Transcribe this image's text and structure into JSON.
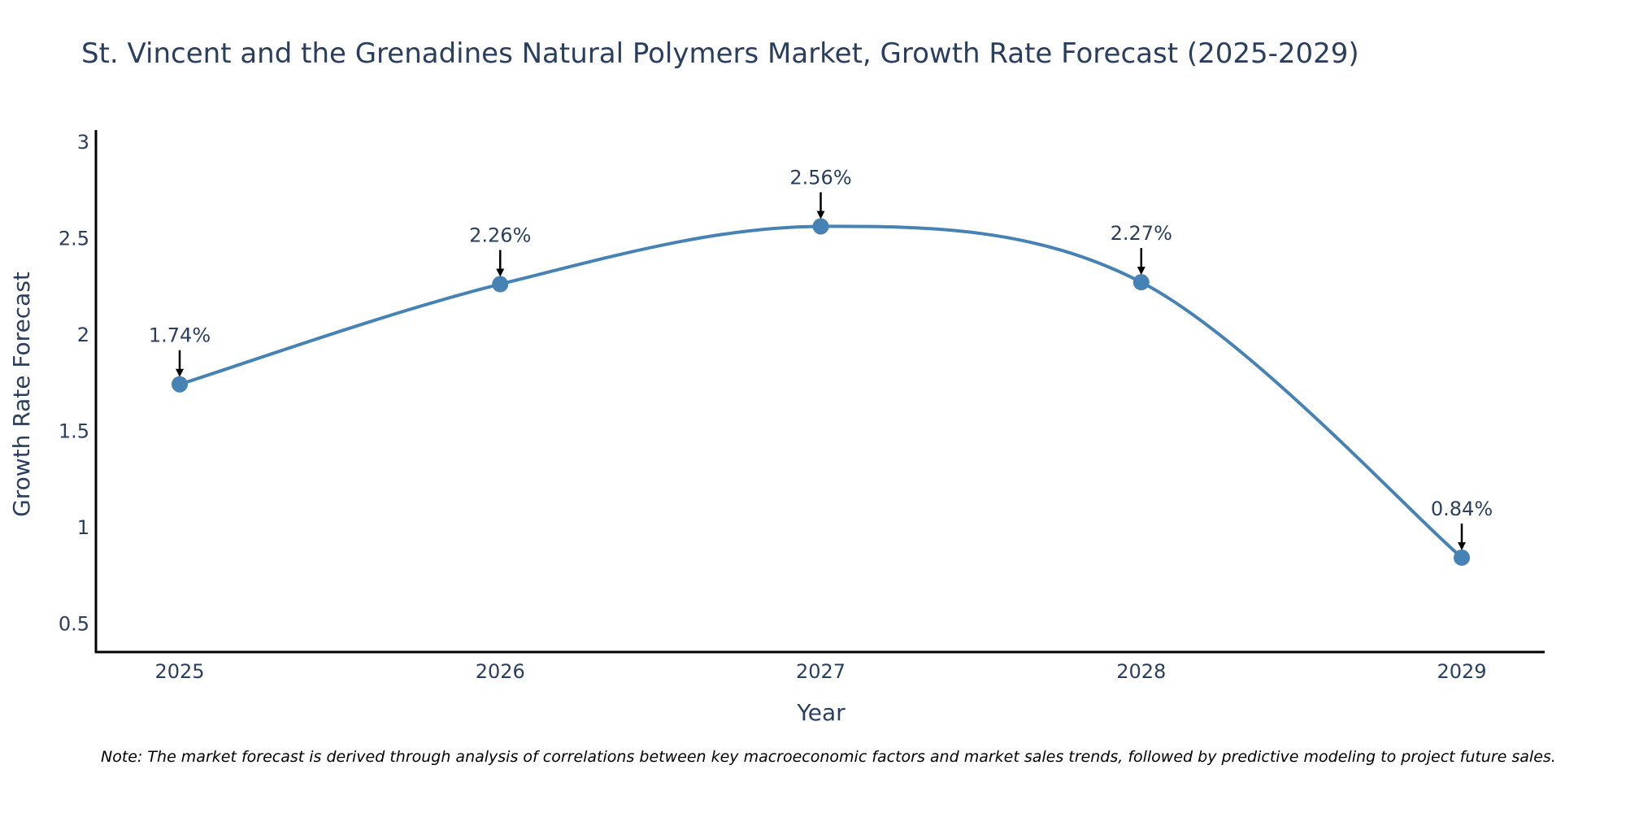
{
  "chart_data": {
    "type": "line",
    "title": "St. Vincent and the Grenadines Natural Polymers Market, Growth Rate Forecast (2025-2029)",
    "xlabel": "Year",
    "ylabel": "Growth Rate Forecast",
    "categories": [
      "2025",
      "2026",
      "2027",
      "2028",
      "2029"
    ],
    "values": [
      1.74,
      2.26,
      2.56,
      2.27,
      0.84
    ],
    "data_labels": [
      "1.74%",
      "2.26%",
      "2.56%",
      "2.27%",
      "0.84%"
    ],
    "y_ticks": [
      0.5,
      1,
      1.5,
      2,
      2.5,
      3
    ],
    "y_tick_labels": [
      "0.5",
      "1",
      "1.5",
      "2",
      "2.5",
      "3"
    ],
    "ylim": [
      0.35,
      3.06
    ],
    "line_shape": "spline",
    "grid": false,
    "legend": "none",
    "line_color": "#4682b4",
    "marker_color": "#4682b4",
    "arrow_color": "#000000"
  },
  "footnote": "Note: The market forecast is derived through analysis of correlations between key macroeconomic factors and market sales trends, followed by predictive modeling to project future sales."
}
